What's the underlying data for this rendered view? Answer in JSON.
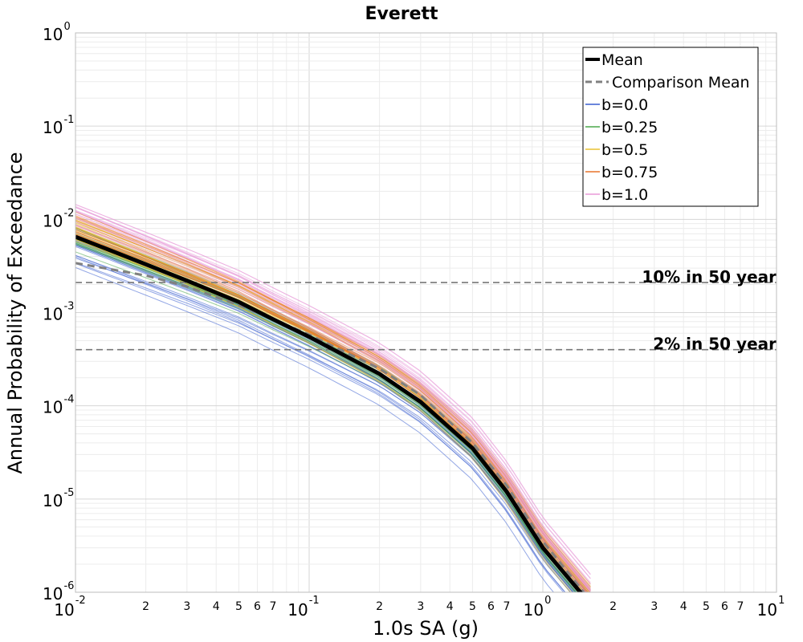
{
  "chart_data": {
    "type": "line",
    "title": "Everett",
    "xlabel": "1.0s SA (g)",
    "ylabel": "Annual Probability of Exceedance",
    "xscale": "log",
    "yscale": "log",
    "xlim": [
      0.01,
      10
    ],
    "ylim": [
      1e-06,
      1
    ],
    "grid": true,
    "legend_position": "top-right",
    "x_tick_labels": [
      {
        "base": "10",
        "exp": "-2",
        "value": 0.01
      },
      {
        "base": "10",
        "exp": "-1",
        "value": 0.1
      },
      {
        "base": "10",
        "exp": "0",
        "value": 1
      },
      {
        "base": "10",
        "exp": "1",
        "value": 10
      }
    ],
    "x_minor_labels": [
      "2",
      "3",
      "4",
      "5",
      "6",
      "7"
    ],
    "y_tick_labels": [
      {
        "base": "10",
        "exp": "0",
        "value": 1
      },
      {
        "base": "10",
        "exp": "-1",
        "value": 0.1
      },
      {
        "base": "10",
        "exp": "-2",
        "value": 0.01
      },
      {
        "base": "10",
        "exp": "-3",
        "value": 0.001
      },
      {
        "base": "10",
        "exp": "-4",
        "value": 0.0001
      },
      {
        "base": "10",
        "exp": "-5",
        "value": 1e-05
      },
      {
        "base": "10",
        "exp": "-6",
        "value": 1e-06
      }
    ],
    "reference_lines": [
      {
        "label": "10% in 50 year",
        "y": 0.0021
      },
      {
        "label": "2% in 50 year",
        "y": 0.0004
      }
    ],
    "series": [
      {
        "name": "Mean",
        "style": "solid-bold",
        "color": "#000000",
        "x": [
          0.01,
          0.02,
          0.03,
          0.05,
          0.07,
          0.1,
          0.2,
          0.3,
          0.5,
          0.7,
          1.0,
          1.5
        ],
        "y": [
          0.0065,
          0.0033,
          0.0022,
          0.0013,
          0.00085,
          0.00055,
          0.00022,
          0.00011,
          3.5e-05,
          1.2e-05,
          3e-06,
          9e-07
        ]
      },
      {
        "name": "Comparison Mean",
        "style": "dashed",
        "color": "#808080",
        "x": [
          0.01,
          0.02,
          0.03,
          0.05,
          0.07,
          0.1,
          0.2,
          0.3,
          0.5,
          0.7,
          1.0,
          1.5
        ],
        "y": [
          0.0034,
          0.0025,
          0.0019,
          0.0012,
          0.00085,
          0.00058,
          0.00025,
          0.00013,
          4e-05,
          1.4e-05,
          3.5e-06,
          1e-06
        ]
      },
      {
        "name": "b=0.0",
        "color": "#3a5fd0"
      },
      {
        "name": "b=0.25",
        "color": "#4aa84a"
      },
      {
        "name": "b=0.5",
        "color": "#e8c232"
      },
      {
        "name": "b=0.75",
        "color": "#e8742a"
      },
      {
        "name": "b=1.0",
        "color": "#e89ad8"
      }
    ]
  }
}
